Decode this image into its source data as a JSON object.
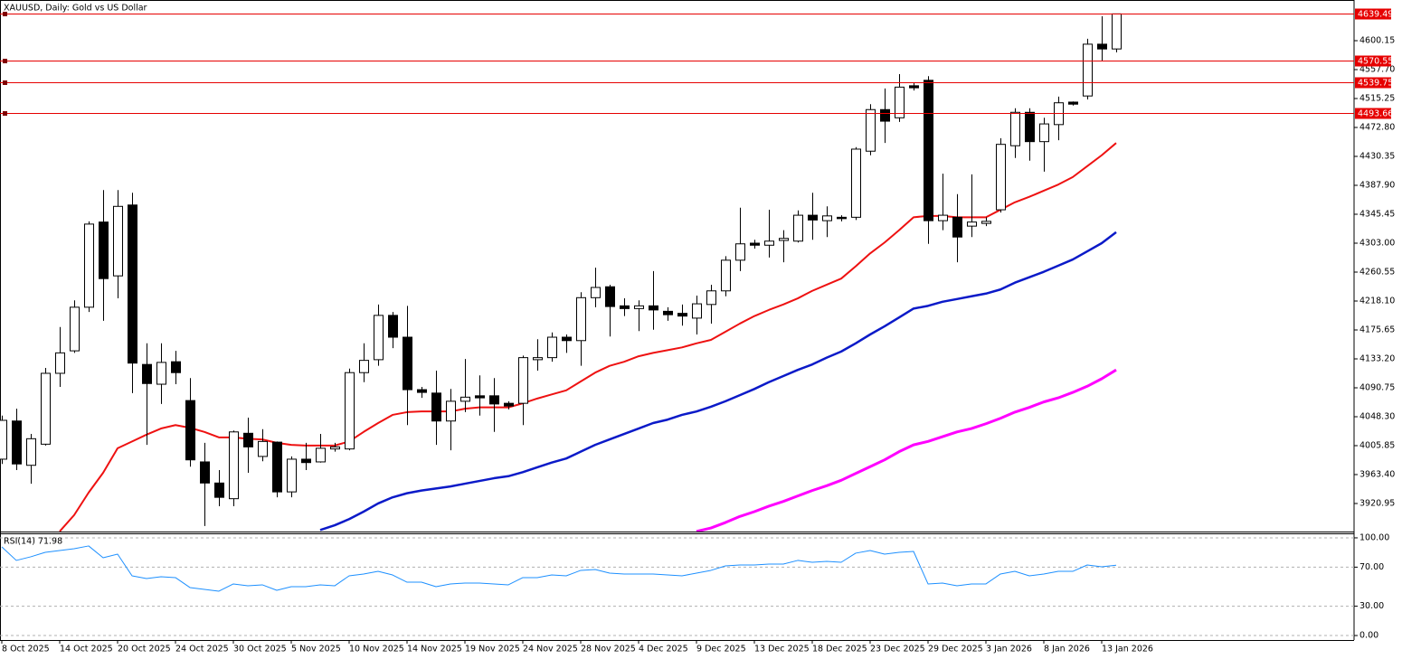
{
  "chart_data": [
    {
      "type": "candlestick",
      "title": "XAUUSD, Daily:  Gold vs US Dollar",
      "categories": [
        "8 Oct 2025",
        null,
        null,
        null,
        "14 Oct 2025",
        null,
        null,
        null,
        "20 Oct 2025",
        null,
        null,
        null,
        "24 Oct 2025",
        null,
        null,
        null,
        "30 Oct 2025",
        null,
        null,
        null,
        "5 Nov 2025",
        null,
        null,
        null,
        "10 Nov 2025",
        null,
        null,
        null,
        "14 Nov 2025",
        null,
        null,
        null,
        "19 Nov 2025",
        null,
        null,
        null,
        "24 Nov 2025",
        null,
        null,
        null,
        "28 Nov 2025",
        null,
        null,
        null,
        "4 Dec 2025",
        null,
        null,
        null,
        "9 Dec 2025",
        null,
        null,
        null,
        "13 Dec 2025",
        null,
        null,
        null,
        "18 Dec 2025",
        null,
        null,
        null,
        "23 Dec 2025",
        null,
        null,
        null,
        "29 Dec 2025",
        null,
        null,
        null,
        "3 Jan 2026",
        null,
        null,
        null,
        "8 Jan 2026",
        null,
        null,
        null,
        "13 Jan 2026",
        null
      ],
      "open": [
        3986,
        4042,
        3977,
        4008,
        4112,
        4145,
        4209,
        4334,
        4255,
        4359,
        4125,
        4096,
        4129,
        4072,
        3982,
        3951,
        3928,
        4024,
        3990,
        4011,
        3938,
        3986,
        3982,
        4001,
        4001,
        4113,
        4132,
        4197,
        4165,
        4088,
        4083,
        4042,
        4071,
        4079,
        4079,
        4068,
        4068,
        4132,
        4135,
        4165,
        4160,
        4223,
        4239,
        4211,
        4207,
        4211,
        4203,
        4200,
        4193,
        4213,
        4233,
        4278,
        4303,
        4300,
        4307,
        4306,
        4344,
        4336,
        4341,
        4341,
        4438,
        4499,
        4487,
        4534,
        4542,
        4336,
        4341,
        4328,
        4332,
        4352,
        4446,
        4495,
        4452,
        4477,
        4510,
        4519,
        4595,
        4588
      ],
      "high": [
        4050,
        4060,
        4023,
        4120,
        4180,
        4219,
        4335,
        4381,
        4381,
        4377,
        4156,
        4156,
        4145,
        4105,
        4010,
        3970,
        4028,
        4047,
        4030,
        4012,
        3990,
        4010,
        4023,
        4010,
        4119,
        4156,
        4213,
        4202,
        4211,
        4092,
        4116,
        4089,
        4133,
        4109,
        4105,
        4071,
        4138,
        4162,
        4172,
        4169,
        4231,
        4267,
        4242,
        4222,
        4219,
        4262,
        4209,
        4213,
        4226,
        4242,
        4284,
        4355,
        4308,
        4352,
        4322,
        4351,
        4377,
        4357,
        4344,
        4444,
        4507,
        4530,
        4551,
        4538,
        4548,
        4405,
        4375,
        4404,
        4341,
        4457,
        4501,
        4501,
        4487,
        4518,
        4511,
        4603,
        4636,
        4640
      ],
      "low": [
        3979,
        3970,
        3950,
        4006,
        4092,
        4142,
        4202,
        4189,
        4222,
        4083,
        4007,
        4067,
        4096,
        3975,
        3888,
        3917,
        3917,
        3966,
        3983,
        3930,
        3930,
        3970,
        3981,
        3997,
        3999,
        4099,
        4123,
        4149,
        4036,
        4076,
        4007,
        3999,
        4055,
        4050,
        4026,
        4059,
        4036,
        4116,
        4129,
        4142,
        4123,
        4209,
        4166,
        4196,
        4174,
        4176,
        4189,
        4182,
        4169,
        4185,
        4225,
        4262,
        4295,
        4282,
        4275,
        4304,
        4308,
        4312,
        4335,
        4337,
        4432,
        4450,
        4481,
        4527,
        4302,
        4322,
        4275,
        4312,
        4328,
        4348,
        4428,
        4424,
        4408,
        4454,
        4505,
        4514,
        4571,
        4583
      ],
      "close": [
        4043,
        3979,
        4016,
        4112,
        4142,
        4209,
        4331,
        4251,
        4357,
        4127,
        4097,
        4128,
        4113,
        3985,
        3951,
        3930,
        4026,
        4004,
        4012,
        3938,
        3986,
        3981,
        4002,
        4004,
        4113,
        4131,
        4197,
        4165,
        4088,
        4084,
        4042,
        4071,
        4077,
        4076,
        4067,
        4064,
        4135,
        4135,
        4165,
        4160,
        4223,
        4238,
        4210,
        4207,
        4211,
        4205,
        4198,
        4196,
        4214,
        4233,
        4278,
        4302,
        4300,
        4306,
        4310,
        4344,
        4337,
        4343,
        4339,
        4441,
        4499,
        4482,
        4532,
        4531,
        4336,
        4344,
        4312,
        4334,
        4335,
        4448,
        4495,
        4452,
        4478,
        4509,
        4507,
        4595,
        4588,
        4639.49
      ],
      "lines": [
        {
          "color": "#ee1111",
          "values": [
            null,
            null,
            null,
            null,
            3880,
            3904,
            3937,
            3966,
            4002,
            4012,
            4022,
            4031,
            4036,
            4032,
            4026,
            4018,
            4018,
            4016,
            4015,
            4010,
            4007,
            4006,
            4006,
            4006,
            4012,
            4026,
            4039,
            4051,
            4055,
            4056,
            4056,
            4056,
            4060,
            4062,
            4062,
            4062,
            4068,
            4075,
            4081,
            4087,
            4100,
            4113,
            4123,
            4129,
            4137,
            4142,
            4146,
            4150,
            4156,
            4161,
            4173,
            4185,
            4196,
            4205,
            4213,
            4222,
            4233,
            4242,
            4251,
            4269,
            4288,
            4304,
            4322,
            4341,
            4343,
            4343,
            4341,
            4341,
            4341,
            4352,
            4363,
            4371,
            4380,
            4389,
            4400,
            4416,
            4432,
            4450
          ]
        },
        {
          "color": "#0b1ac8",
          "values": [
            null,
            null,
            null,
            null,
            null,
            null,
            null,
            null,
            null,
            null,
            null,
            null,
            null,
            null,
            null,
            null,
            null,
            null,
            null,
            null,
            null,
            null,
            3882,
            3889,
            3898,
            3909,
            3921,
            3930,
            3936,
            3940,
            3943,
            3946,
            3950,
            3954,
            3958,
            3961,
            3967,
            3974,
            3981,
            3987,
            3997,
            4007,
            4015,
            4023,
            4031,
            4039,
            4044,
            4051,
            4056,
            4063,
            4071,
            4080,
            4089,
            4099,
            4108,
            4117,
            4125,
            4135,
            4144,
            4156,
            4169,
            4181,
            4194,
            4207,
            4211,
            4217,
            4221,
            4225,
            4229,
            4235,
            4245,
            4253,
            4261,
            4270,
            4279,
            4291,
            4303,
            4319
          ]
        },
        {
          "color": "#ff00ff",
          "values": [
            null,
            null,
            null,
            null,
            null,
            null,
            null,
            null,
            null,
            null,
            null,
            null,
            null,
            null,
            null,
            null,
            null,
            null,
            null,
            null,
            null,
            null,
            null,
            null,
            null,
            null,
            null,
            null,
            null,
            null,
            null,
            null,
            null,
            null,
            null,
            null,
            null,
            null,
            null,
            null,
            null,
            null,
            null,
            null,
            null,
            null,
            null,
            null,
            3880,
            3885,
            3893,
            3902,
            3909,
            3917,
            3924,
            3932,
            3940,
            3947,
            3955,
            3965,
            3975,
            3985,
            3997,
            4007,
            4012,
            4019,
            4026,
            4031,
            4038,
            4046,
            4055,
            4062,
            4070,
            4076,
            4084,
            4093,
            4104,
            4117
          ]
        }
      ],
      "levels": [
        4639.49,
        4570.55,
        4539.75,
        4493.66
      ],
      "level_color": "#e60000",
      "ylim": [
        3879.8,
        4659.85
      ],
      "yticks": [
        4600.15,
        {
          "value": 4557.7,
          "label": "4557.70"
        },
        4515.25,
        {
          "value": 4472.8,
          "label": "4472.80"
        },
        4430.35,
        {
          "value": 4387.9,
          "label": "4387.90"
        },
        4345.45,
        {
          "value": 4303,
          "label": "4303.00"
        },
        4260.55,
        {
          "value": 4218.1,
          "label": "4218.10"
        },
        4175.65,
        {
          "value": 4133.2,
          "label": "4133.20"
        },
        4090.75,
        {
          "value": 4048.3,
          "label": "4048.30"
        },
        4005.85,
        {
          "value": 3963.4,
          "label": "3963.40"
        },
        3920.95
      ]
    },
    {
      "type": "line",
      "title": "RSI(14) 71.98",
      "color": "#1e90ff",
      "values": [
        90.7,
        76.9,
        80.6,
        85.2,
        87.0,
        88.9,
        91.7,
        79.6,
        83.3,
        61.1,
        58.3,
        60.2,
        59.3,
        49.1,
        47.2,
        45.4,
        52.8,
        50.9,
        51.9,
        46.3,
        50.0,
        50.0,
        51.9,
        50.9,
        61.1,
        63.0,
        65.7,
        62.0,
        54.6,
        54.6,
        50.0,
        52.8,
        53.7,
        53.7,
        52.8,
        51.9,
        59.3,
        59.3,
        62.0,
        61.1,
        66.7,
        67.6,
        63.9,
        63.0,
        63.0,
        63.0,
        62.0,
        61.1,
        63.9,
        66.7,
        71.3,
        72.2,
        72.2,
        73.1,
        73.1,
        76.9,
        75.0,
        75.9,
        75.0,
        84.3,
        87.0,
        83.3,
        85.2,
        86.1,
        52.8,
        53.7,
        50.9,
        52.8,
        52.8,
        63.0,
        65.7,
        61.1,
        63.0,
        65.7,
        65.7,
        72.2,
        70.4,
        71.98
      ],
      "ylim": [
        -4.6,
        104.6
      ],
      "yticks": [
        {
          "value": 100,
          "label": "100.00"
        },
        {
          "value": 70,
          "label": "70.00"
        },
        {
          "value": 30,
          "label": "30.00"
        },
        {
          "value": 0,
          "label": "0.00"
        }
      ],
      "grid": true
    }
  ]
}
